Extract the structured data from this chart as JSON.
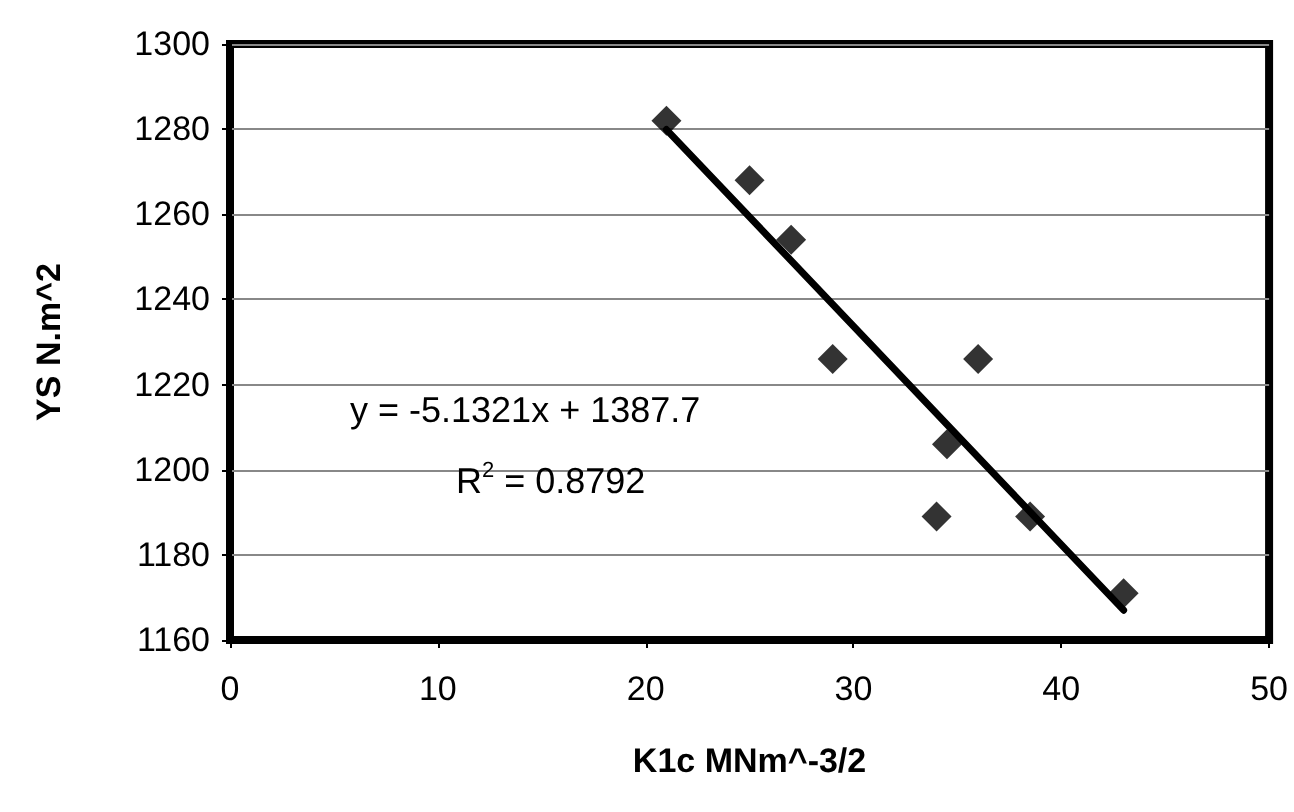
{
  "chart_data": {
    "type": "scatter",
    "xlabel": "K1c MNm^-3/2",
    "ylabel": "YS N.m^2",
    "xlim": [
      0,
      50
    ],
    "xticks": [
      0,
      10,
      20,
      30,
      40,
      50
    ],
    "ylim": [
      1160,
      1300
    ],
    "yticks": [
      1160,
      1180,
      1200,
      1220,
      1240,
      1260,
      1280,
      1300
    ],
    "grid": "y",
    "marker": "diamond",
    "annotations": [
      "y = -5.1321x + 1387.7",
      "R$^{2}$ = 0.8792"
    ],
    "series": [
      {
        "color": "#000000",
        "x": [
          21,
          25,
          27,
          29,
          34,
          34.5,
          36,
          38.5,
          43
        ],
        "values": [
          1282,
          1268,
          1254,
          1226,
          1189,
          1206,
          1226,
          1189,
          1171
        ]
      },
      {
        "type": "line",
        "color": "#000000",
        "marker": "none",
        "x": [
          21,
          43
        ],
        "values": [
          1279.9,
          1167.0
        ]
      }
    ]
  }
}
